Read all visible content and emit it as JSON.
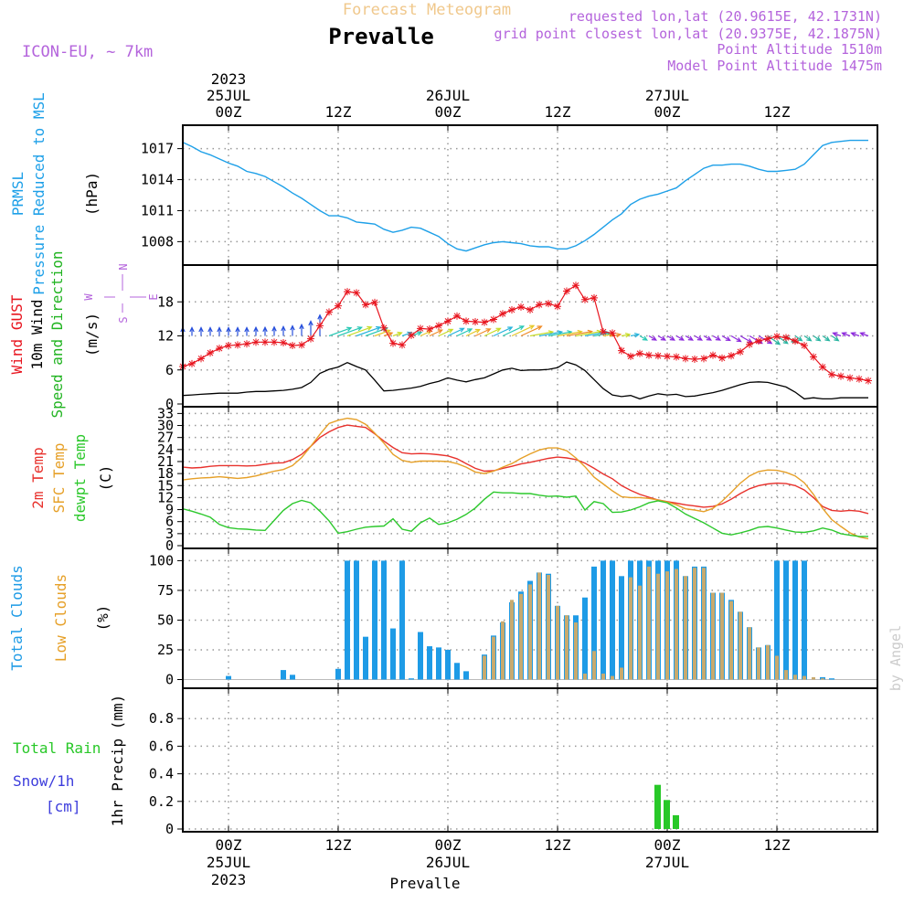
{
  "header": {
    "subtitle": "Forecast Meteogram",
    "station": "Prevalle",
    "model": "ICON-EU, ~ 7km",
    "requested": "requested lon,lat (20.9615E, 42.1731N)",
    "gridpoint": "grid point closest lon,lat (20.9375E, 42.1875N)",
    "point_alt": "Point Altitude 1510m",
    "model_alt": "Model Point Altitude 1475m",
    "watermark": "by Angel"
  },
  "colors": {
    "prmsl": "#1ea0e8",
    "gust": "#e8141e",
    "wind10": "#000000",
    "dir": "#22b422",
    "t2m": "#e8322d",
    "sfc": "#e6a028",
    "dewpt": "#2cc82c",
    "total_cloud": "#1e9be6",
    "low_cloud": "#c8aa6e",
    "rain": "#28c828",
    "snow": "#3c3cdc",
    "purple": "#b464dc",
    "title_orange": "#f0c88c"
  },
  "time_axis": {
    "top_labels": [
      {
        "t": 0,
        "lines": [
          "2023",
          "25JUL",
          "00Z"
        ]
      },
      {
        "t": 12,
        "lines": [
          "12Z"
        ]
      },
      {
        "t": 24,
        "lines": [
          "26JUL",
          "00Z"
        ]
      },
      {
        "t": 36,
        "lines": [
          "12Z"
        ]
      },
      {
        "t": 48,
        "lines": [
          "27JUL",
          "00Z"
        ]
      },
      {
        "t": 60,
        "lines": [
          "12Z"
        ]
      }
    ],
    "bottom_labels": [
      {
        "t": 0,
        "lines": [
          "00Z",
          "25JUL",
          "2023"
        ]
      },
      {
        "t": 12,
        "lines": [
          "12Z"
        ]
      },
      {
        "t": 24,
        "lines": [
          "00Z",
          "26JUL"
        ]
      },
      {
        "t": 36,
        "lines": [
          "12Z"
        ]
      },
      {
        "t": 48,
        "lines": [
          "00Z",
          "27JUL"
        ]
      },
      {
        "t": 60,
        "lines": [
          "12Z"
        ]
      }
    ],
    "t_range_hours": [
      -5,
      71
    ]
  },
  "chart_data": [
    {
      "type": "line",
      "title": "PRMSL Pressure Reduced to MSL",
      "labels": [
        "PRMSL",
        "Pressure Reduced to MSL"
      ],
      "unit": "(hPa)",
      "ylim": [
        1006,
        1019
      ],
      "yticks": [
        1008,
        1011,
        1014,
        1017
      ],
      "x": [
        -5,
        -4,
        -3,
        -2,
        -1,
        0,
        1,
        2,
        3,
        4,
        5,
        6,
        7,
        8,
        9,
        10,
        11,
        12,
        13,
        14,
        15,
        16,
        17,
        18,
        19,
        20,
        21,
        22,
        23,
        24,
        25,
        26,
        27,
        28,
        29,
        30,
        31,
        32,
        33,
        34,
        35,
        36,
        37,
        38,
        39,
        40,
        41,
        42,
        43,
        44,
        45,
        46,
        47,
        48,
        49,
        50,
        51,
        52,
        53,
        54,
        55,
        56,
        57,
        58,
        59,
        60,
        61,
        62,
        63,
        64,
        65,
        66,
        67,
        68,
        69,
        70
      ],
      "series": [
        {
          "name": "PRMSL",
          "values": [
            1017.6,
            1017.2,
            1016.7,
            1016.4,
            1016.0,
            1015.6,
            1015.3,
            1014.8,
            1014.6,
            1014.3,
            1013.8,
            1013.3,
            1012.7,
            1012.2,
            1011.6,
            1011.0,
            1010.5,
            1010.5,
            1010.3,
            1009.9,
            1009.8,
            1009.7,
            1009.2,
            1008.9,
            1009.1,
            1009.4,
            1009.3,
            1008.9,
            1008.5,
            1007.8,
            1007.3,
            1007.1,
            1007.4,
            1007.7,
            1007.9,
            1008.0,
            1007.9,
            1007.8,
            1007.6,
            1007.5,
            1007.5,
            1007.3,
            1007.3,
            1007.6,
            1008.1,
            1008.7,
            1009.4,
            1010.1,
            1010.7,
            1011.6,
            1012.1,
            1012.4,
            1012.6,
            1012.9,
            1013.2,
            1013.9,
            1014.5,
            1015.1,
            1015.4,
            1015.4,
            1015.5,
            1015.5,
            1015.3,
            1015.0,
            1014.8,
            1014.8,
            1014.9,
            1015.0,
            1015.5,
            1016.4,
            1017.3,
            1017.6,
            1017.7,
            1017.8,
            1017.8,
            1017.8
          ]
        }
      ]
    },
    {
      "type": "line",
      "title": "Wind GUST, 10m Wind Speed and Direction",
      "labels": [
        "Wind GUST",
        "10m Wind",
        "Speed and Direction"
      ],
      "unit": "(m/s)",
      "ylim": [
        0,
        24
      ],
      "yticks": [
        0,
        6,
        12,
        18
      ],
      "compass": {
        "n": "N",
        "s": "S",
        "e": "E",
        "w": "W"
      },
      "x": [
        -5,
        -4,
        -3,
        -2,
        -1,
        0,
        1,
        2,
        3,
        4,
        5,
        6,
        7,
        8,
        9,
        10,
        11,
        12,
        13,
        14,
        15,
        16,
        17,
        18,
        19,
        20,
        21,
        22,
        23,
        24,
        25,
        26,
        27,
        28,
        29,
        30,
        31,
        32,
        33,
        34,
        35,
        36,
        37,
        38,
        39,
        40,
        41,
        42,
        43,
        44,
        45,
        46,
        47,
        48,
        49,
        50,
        51,
        52,
        53,
        54,
        55,
        56,
        57,
        58,
        59,
        60,
        61,
        62,
        63,
        64,
        65,
        66,
        67,
        68,
        69,
        70
      ],
      "series": [
        {
          "name": "Wind GUST",
          "values": [
            6.6,
            7.1,
            8.0,
            9.0,
            9.8,
            10.3,
            10.4,
            10.6,
            10.9,
            10.9,
            10.9,
            10.8,
            10.3,
            10.4,
            11.5,
            13.8,
            16.2,
            17.3,
            19.8,
            19.6,
            17.5,
            17.9,
            13.4,
            10.7,
            10.4,
            12.1,
            13.3,
            13.2,
            13.8,
            14.6,
            15.5,
            14.6,
            14.5,
            14.4,
            14.9,
            15.9,
            16.6,
            17.1,
            16.6,
            17.5,
            17.7,
            17.2,
            19.9,
            20.9,
            18.4,
            18.7,
            12.7,
            12.5,
            9.4,
            8.4,
            8.9,
            8.6,
            8.5,
            8.4,
            8.3,
            8.0,
            7.9,
            8.0,
            8.6,
            8.1,
            8.5,
            9.2,
            10.5,
            11.1,
            11.5,
            11.9,
            11.7,
            11.1,
            10.3,
            8.3,
            6.5,
            5.2,
            4.9,
            4.6,
            4.4,
            4.1
          ]
        },
        {
          "name": "10m Wind",
          "values": [
            1.5,
            1.6,
            1.7,
            1.8,
            1.9,
            1.9,
            1.9,
            2.1,
            2.2,
            2.2,
            2.3,
            2.4,
            2.6,
            2.9,
            3.8,
            5.4,
            6.1,
            6.5,
            7.3,
            6.6,
            6.0,
            4.2,
            2.3,
            2.4,
            2.6,
            2.8,
            3.1,
            3.6,
            4.0,
            4.6,
            4.2,
            3.9,
            4.3,
            4.6,
            5.3,
            6.0,
            6.3,
            5.9,
            6.0,
            6.0,
            6.1,
            6.4,
            7.4,
            6.9,
            5.9,
            4.3,
            2.7,
            1.6,
            1.3,
            1.5,
            0.9,
            1.4,
            1.8,
            1.6,
            1.7,
            1.3,
            1.4,
            1.7,
            2.0,
            2.4,
            2.9,
            3.4,
            3.8,
            3.9,
            3.8,
            3.4,
            3.0,
            2.1,
            0.9,
            1.1,
            0.9,
            0.9,
            1.1,
            1.1,
            1.1,
            1.1
          ]
        }
      ]
    },
    {
      "type": "line",
      "title": "2m Temp, SFC Temp, dewpt Temp",
      "labels": [
        "2m Temp",
        "SFC Temp",
        "dewpt Temp"
      ],
      "unit": "(C)",
      "ylim": [
        0,
        34
      ],
      "yticks": [
        0,
        3,
        6,
        9,
        12,
        15,
        18,
        21,
        24,
        27,
        30,
        33
      ],
      "x": [
        -5,
        -4,
        -3,
        -2,
        -1,
        0,
        1,
        2,
        3,
        4,
        5,
        6,
        7,
        8,
        9,
        10,
        11,
        12,
        13,
        14,
        15,
        16,
        17,
        18,
        19,
        20,
        21,
        22,
        23,
        24,
        25,
        26,
        27,
        28,
        29,
        30,
        31,
        32,
        33,
        34,
        35,
        36,
        37,
        38,
        39,
        40,
        41,
        42,
        43,
        44,
        45,
        46,
        47,
        48,
        49,
        50,
        51,
        52,
        53,
        54,
        55,
        56,
        57,
        58,
        59,
        60,
        61,
        62,
        63,
        64,
        65,
        66,
        67,
        68,
        69,
        70
      ],
      "series": [
        {
          "name": "2m Temp",
          "values": [
            19.6,
            19.4,
            19.5,
            19.8,
            20.0,
            20.0,
            20.0,
            19.9,
            20.0,
            20.3,
            20.6,
            20.7,
            21.5,
            22.8,
            24.8,
            27.0,
            28.4,
            29.5,
            30.1,
            29.8,
            29.5,
            27.9,
            26.1,
            24.5,
            23.2,
            22.9,
            23.0,
            22.9,
            22.7,
            22.4,
            21.7,
            20.5,
            19.3,
            18.6,
            18.7,
            19.3,
            19.8,
            20.4,
            20.8,
            21.3,
            21.8,
            22.1,
            21.9,
            21.5,
            20.6,
            19.3,
            17.9,
            16.7,
            15.0,
            13.8,
            12.8,
            12.1,
            11.4,
            11.0,
            10.6,
            10.2,
            9.9,
            9.6,
            9.8,
            10.4,
            11.6,
            13.0,
            14.2,
            15.0,
            15.4,
            15.6,
            15.5,
            15.0,
            13.9,
            12.0,
            9.8,
            8.8,
            8.6,
            8.8,
            8.6,
            8.0
          ]
        },
        {
          "name": "SFC Temp",
          "values": [
            16.4,
            16.7,
            16.9,
            17.0,
            17.2,
            17.0,
            16.8,
            17.0,
            17.4,
            18.0,
            18.6,
            19.0,
            20.0,
            22.0,
            24.8,
            27.8,
            30.5,
            31.3,
            31.8,
            31.5,
            30.3,
            28.1,
            25.6,
            22.8,
            21.3,
            20.8,
            21.1,
            21.1,
            21.1,
            21.0,
            20.5,
            19.6,
            18.4,
            18.0,
            18.6,
            19.6,
            20.5,
            21.8,
            22.9,
            23.9,
            24.4,
            24.4,
            23.7,
            21.9,
            19.7,
            17.1,
            15.4,
            13.7,
            12.2,
            12.0,
            12.0,
            11.8,
            11.4,
            10.9,
            10.2,
            9.2,
            8.9,
            8.5,
            9.3,
            11.1,
            13.3,
            15.6,
            17.4,
            18.5,
            18.9,
            18.8,
            18.3,
            17.4,
            15.7,
            12.8,
            9.3,
            6.5,
            4.8,
            3.2,
            2.2,
            1.7
          ]
        },
        {
          "name": "dewpt Temp",
          "values": [
            9.2,
            8.6,
            7.9,
            7.1,
            5.3,
            4.5,
            4.2,
            4.1,
            3.9,
            3.8,
            6.3,
            8.8,
            10.5,
            11.3,
            10.7,
            8.6,
            6.2,
            3.1,
            3.5,
            4.1,
            4.6,
            4.8,
            4.9,
            6.7,
            4.1,
            3.6,
            5.7,
            6.9,
            5.3,
            5.7,
            6.6,
            7.8,
            9.4,
            11.6,
            13.4,
            13.2,
            13.2,
            13.0,
            13.0,
            12.6,
            12.3,
            12.4,
            12.1,
            12.4,
            8.9,
            11.0,
            10.5,
            8.3,
            8.4,
            8.9,
            9.7,
            10.7,
            11.2,
            10.7,
            9.4,
            7.9,
            6.8,
            5.7,
            4.4,
            3.1,
            2.7,
            3.2,
            3.8,
            4.6,
            4.8,
            4.4,
            3.9,
            3.4,
            3.3,
            3.7,
            4.4,
            3.9,
            3.0,
            2.6,
            2.3,
            2.3
          ]
        }
      ]
    },
    {
      "type": "bar",
      "title": "Total Clouds, Low Clouds",
      "labels": [
        "Total Clouds",
        "Low Clouds"
      ],
      "unit": "(%)",
      "ylim": [
        -5,
        108
      ],
      "yticks": [
        0,
        25,
        50,
        75,
        100
      ],
      "x": [
        -5,
        -4,
        -3,
        -2,
        -1,
        0,
        1,
        2,
        3,
        4,
        5,
        6,
        7,
        8,
        9,
        10,
        11,
        12,
        13,
        14,
        15,
        16,
        17,
        18,
        19,
        20,
        21,
        22,
        23,
        24,
        25,
        26,
        27,
        28,
        29,
        30,
        31,
        32,
        33,
        34,
        35,
        36,
        37,
        38,
        39,
        40,
        41,
        42,
        43,
        44,
        45,
        46,
        47,
        48,
        49,
        50,
        51,
        52,
        53,
        54,
        55,
        56,
        57,
        58,
        59,
        60,
        61,
        62,
        63,
        64,
        65,
        66,
        67,
        68,
        69,
        70
      ],
      "series": [
        {
          "name": "Total Clouds",
          "values": [
            0,
            0,
            0,
            0,
            0,
            3,
            0,
            0,
            0,
            0,
            0,
            8,
            4,
            0,
            0,
            0,
            0,
            9,
            100,
            100,
            36,
            100,
            100,
            43,
            100,
            1,
            40,
            28,
            27,
            25,
            14,
            7,
            0,
            21,
            37,
            48,
            65,
            74,
            83,
            90,
            89,
            62,
            54,
            54,
            69,
            95,
            100,
            100,
            87,
            100,
            100,
            100,
            100,
            100,
            100,
            87,
            95,
            95,
            73,
            73,
            67,
            57,
            44,
            27,
            29,
            100,
            100,
            100,
            100,
            0,
            2,
            1,
            0,
            0,
            0,
            0
          ]
        },
        {
          "name": "Low Clouds",
          "values": [
            0,
            0,
            0,
            0,
            0,
            0,
            0,
            0,
            0,
            0,
            0,
            0,
            0,
            0,
            0,
            0,
            0,
            0,
            0,
            0,
            0,
            0,
            0,
            0,
            0,
            0,
            0,
            0,
            0,
            0,
            0,
            0,
            0,
            20,
            36,
            49,
            67,
            72,
            80,
            90,
            88,
            62,
            54,
            48,
            5,
            24,
            5,
            3,
            10,
            86,
            79,
            95,
            89,
            91,
            93,
            87,
            94,
            94,
            73,
            73,
            66,
            57,
            44,
            27,
            29,
            20,
            8,
            4,
            3,
            2,
            1,
            0,
            0,
            0,
            0,
            0
          ]
        }
      ]
    },
    {
      "type": "bar",
      "title": "1hr Precip (mm)",
      "labels": [
        "Total Rain",
        "Snow/1h",
        "[cm]"
      ],
      "unit": "1hr Precip (mm)",
      "ylim": [
        0,
        1.0
      ],
      "yticks": [
        0,
        0.2,
        0.4,
        0.6,
        0.8
      ],
      "ytick_labels": [
        "0",
        "0.2",
        "0.4",
        "0.6",
        "0.8"
      ],
      "x": [
        47,
        48,
        49
      ],
      "series": [
        {
          "name": "Total Rain",
          "values": [
            0.32,
            0.21,
            0.1
          ]
        }
      ]
    }
  ],
  "footer": {
    "station": "Prevalle"
  }
}
